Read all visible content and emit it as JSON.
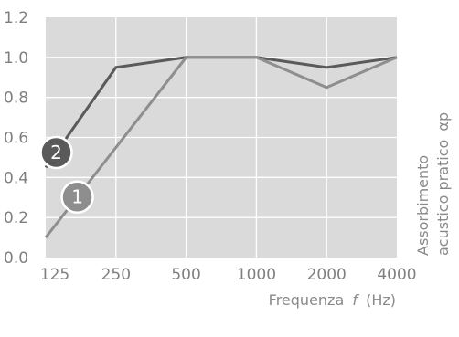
{
  "chart_data": {
    "type": "line",
    "x": [
      "125",
      "250",
      "500",
      "1000",
      "2000",
      "4000"
    ],
    "xlabel": "Frequenza",
    "xlabel_var": "f",
    "xlabel_unit": "(Hz)",
    "ylabel_line1": "Assorbimento",
    "ylabel_line2": "acustico pratico",
    "ylabel_symbol": "αp",
    "ylim": [
      0,
      1.2
    ],
    "yticks": [
      "0.0",
      "0.2",
      "0.4",
      "0.6",
      "0.8",
      "1.0",
      "1.2"
    ],
    "grid": true,
    "series": [
      {
        "name": "1",
        "color": "#8e8e8e",
        "values": [
          0.1,
          0.55,
          1.0,
          1.0,
          0.85,
          1.0
        ],
        "marker_at": 0.45
      },
      {
        "name": "2",
        "color": "#5a5a5a",
        "values": [
          0.45,
          0.95,
          1.0,
          1.0,
          0.95,
          1.0
        ],
        "marker_at": 0.15
      }
    ],
    "colors": {
      "plot_bg": "#dadada",
      "grid": "#ffffff",
      "text": "#7f7f7f"
    }
  }
}
